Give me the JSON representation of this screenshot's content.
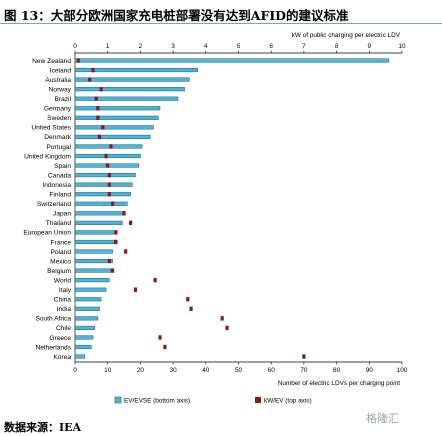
{
  "header": {
    "title": "图 13：大部分欧洲国家充电桩部署没有达到AFID的建议标准"
  },
  "footer": {
    "source": "数据来源：IEA",
    "watermark": "格隆汇"
  },
  "colors": {
    "bar": "#4bb4d8",
    "bar_edge": "#1f5e86",
    "marker": "#8b1a1a"
  },
  "chart_data": {
    "type": "bar",
    "orientation": "horizontal",
    "categories": [
      "New Zealand",
      "Iceland",
      "Australia",
      "Norway",
      "Brazil",
      "Germany",
      "Sweden",
      "United States",
      "Denmark",
      "Portugal",
      "United Kingdom",
      "Spain",
      "Canada",
      "Indonesia",
      "Finland",
      "Switzerland",
      "Japan",
      "Thailand",
      "European Union",
      "France",
      "Poland",
      "Mexico",
      "Belgium",
      "World",
      "Italy",
      "China",
      "India",
      "South Africa",
      "Chile",
      "Greece",
      "Netherlands",
      "Korea"
    ],
    "series": [
      {
        "name": "EV/EVSE (bottom axis)",
        "type": "bar",
        "values": [
          96,
          37.5,
          35,
          33.5,
          31.5,
          26,
          25.5,
          24,
          23,
          20.5,
          20,
          19.5,
          18.5,
          17.5,
          17,
          16,
          15,
          14.5,
          12.5,
          12,
          11.5,
          11.5,
          11,
          10.5,
          9.5,
          8,
          7.5,
          7,
          6,
          5.5,
          5,
          3
        ]
      },
      {
        "name": "kW/EV (top axis)",
        "type": "marker",
        "values": [
          0.1,
          0.55,
          0.45,
          0.8,
          0.65,
          0.7,
          0.7,
          0.85,
          0.75,
          1.1,
          0.95,
          1.0,
          1.05,
          1.05,
          1.05,
          1.15,
          1.5,
          1.7,
          1.25,
          1.25,
          1.55,
          1.05,
          1.15,
          2.45,
          1.85,
          3.45,
          3.55,
          4.5,
          4.65,
          2.6,
          2.75,
          7.0
        ]
      }
    ],
    "x_bottom": {
      "label": "Number of electric LDVs per charging point",
      "range": [
        0,
        100
      ],
      "ticks": [
        "0",
        "10",
        "20",
        "30",
        "40",
        "50",
        "60",
        "70",
        "80",
        "90",
        "100"
      ]
    },
    "x_top": {
      "label": "kW of public charging per electric LDV",
      "range": [
        0,
        10
      ],
      "ticks": [
        "0",
        "1",
        "2",
        "3",
        "4",
        "5",
        "6",
        "7",
        "8",
        "9",
        "10"
      ]
    },
    "legend": {
      "position": "bottom",
      "items": [
        {
          "label": "EV/EVSE (bottom axis)"
        },
        {
          "label": "kW/EV (top axis)"
        }
      ]
    }
  }
}
